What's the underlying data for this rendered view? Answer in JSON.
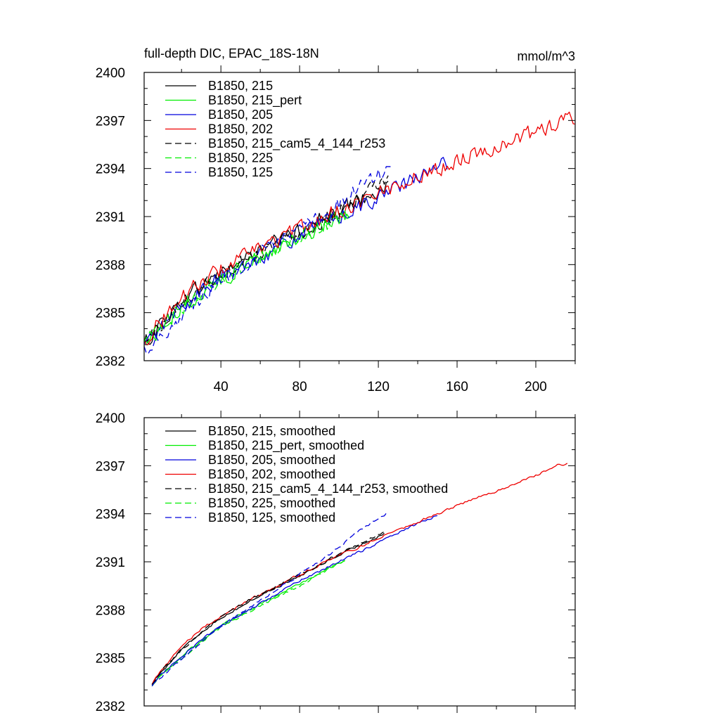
{
  "chart_data": [
    {
      "type": "line",
      "title": "full-depth DIC, EPAC_18S-18N",
      "units": "mmol/m^3",
      "xlabel": "",
      "ylabel": "",
      "xlim": [
        1,
        220
      ],
      "ylim": [
        2382,
        2400
      ],
      "xticks": [
        40,
        80,
        120,
        160,
        200
      ],
      "yticks": [
        2382,
        2385,
        2388,
        2391,
        2394,
        2397,
        2400
      ],
      "legend_position": "top-left",
      "grid": false,
      "series": [
        {
          "name": "B1850, 215",
          "color": "#000000",
          "dash": false,
          "noise": 0.45,
          "x": [
            1,
            10,
            20,
            30,
            40,
            50,
            60,
            70,
            80,
            90,
            100,
            110,
            120,
            125
          ],
          "y": [
            2383.0,
            2384.4,
            2385.7,
            2386.7,
            2387.5,
            2388.2,
            2388.9,
            2389.5,
            2390.1,
            2390.8,
            2391.4,
            2392.0,
            2392.7,
            2393.0
          ]
        },
        {
          "name": "B1850, 215_pert",
          "color": "#00ee00",
          "dash": false,
          "noise": 0.45,
          "x": [
            1,
            10,
            20,
            30,
            40,
            50,
            60,
            70,
            80,
            90,
            100,
            105
          ],
          "y": [
            2383.1,
            2384.0,
            2385.2,
            2386.3,
            2387.1,
            2387.8,
            2388.5,
            2389.1,
            2389.7,
            2390.3,
            2391.0,
            2391.3
          ]
        },
        {
          "name": "B1850, 205",
          "color": "#0000dd",
          "dash": false,
          "noise": 0.45,
          "x": [
            1,
            10,
            20,
            30,
            40,
            50,
            60,
            70,
            80,
            90,
            100,
            110,
            120,
            130,
            140,
            150,
            155
          ],
          "y": [
            2382.9,
            2384.1,
            2385.3,
            2386.3,
            2387.1,
            2387.8,
            2388.5,
            2389.1,
            2389.8,
            2390.4,
            2391.0,
            2391.6,
            2392.2,
            2392.8,
            2393.4,
            2394.0,
            2394.3
          ]
        },
        {
          "name": "B1850, 202",
          "color": "#ee0000",
          "dash": false,
          "noise": 0.45,
          "x": [
            1,
            10,
            20,
            30,
            40,
            50,
            60,
            70,
            80,
            90,
            100,
            110,
            120,
            130,
            140,
            150,
            160,
            170,
            180,
            190,
            200,
            210,
            220
          ],
          "y": [
            2383.2,
            2384.6,
            2385.9,
            2386.9,
            2387.7,
            2388.4,
            2389.0,
            2389.6,
            2390.2,
            2390.8,
            2391.4,
            2391.9,
            2392.5,
            2393.0,
            2393.5,
            2394.0,
            2394.5,
            2395.0,
            2395.4,
            2395.8,
            2396.3,
            2396.8,
            2397.2
          ]
        },
        {
          "name": "B1850, 215_cam5_4_144_r253",
          "color": "#000000",
          "dash": true,
          "noise": 0.45,
          "x": [
            1,
            10,
            20,
            30,
            40,
            50,
            60,
            70,
            80,
            90,
            100,
            110,
            120,
            125
          ],
          "y": [
            2383.1,
            2384.3,
            2385.6,
            2386.6,
            2387.4,
            2388.2,
            2388.9,
            2389.5,
            2390.1,
            2390.7,
            2391.4,
            2392.1,
            2392.8,
            2393.1
          ]
        },
        {
          "name": "B1850, 225",
          "color": "#00ee00",
          "dash": true,
          "noise": 0.45,
          "x": [
            1,
            10,
            20,
            30,
            40,
            50,
            60,
            70,
            80,
            90,
            100,
            105
          ],
          "y": [
            2383.0,
            2384.0,
            2385.3,
            2386.3,
            2387.2,
            2387.9,
            2388.5,
            2389.1,
            2389.7,
            2390.3,
            2390.9,
            2391.2
          ]
        },
        {
          "name": "B1850, 125",
          "color": "#0000dd",
          "dash": true,
          "noise": 0.45,
          "x": [
            1,
            10,
            20,
            30,
            40,
            50,
            60,
            70,
            80,
            90,
            100,
            110,
            120,
            127
          ],
          "y": [
            2382.7,
            2383.6,
            2384.9,
            2386.0,
            2387.0,
            2387.8,
            2388.6,
            2389.3,
            2390.1,
            2390.9,
            2391.8,
            2392.7,
            2393.6,
            2394.2
          ]
        }
      ]
    },
    {
      "type": "line",
      "title": "",
      "xlabel": "",
      "ylabel": "",
      "xlim": [
        1,
        220
      ],
      "ylim": [
        2382,
        2400
      ],
      "xticks": [
        40,
        80,
        120,
        160,
        200
      ],
      "yticks": [
        2382,
        2385,
        2388,
        2391,
        2394,
        2397,
        2400
      ],
      "legend_position": "top-left",
      "grid": false,
      "series": [
        {
          "name": "B1850, 215, smoothed",
          "color": "#000000",
          "dash": false,
          "noise": 0.07,
          "x": [
            5,
            10,
            20,
            30,
            40,
            50,
            60,
            70,
            80,
            90,
            100,
            110,
            120,
            123
          ],
          "y": [
            2383.4,
            2384.2,
            2385.5,
            2386.6,
            2387.5,
            2388.2,
            2388.9,
            2389.5,
            2390.1,
            2390.8,
            2391.4,
            2392.0,
            2392.6,
            2392.8
          ]
        },
        {
          "name": "B1850, 215_pert, smoothed",
          "color": "#00ee00",
          "dash": false,
          "noise": 0.07,
          "x": [
            5,
            10,
            20,
            30,
            40,
            50,
            60,
            70,
            80,
            90,
            100,
            103
          ],
          "y": [
            2383.4,
            2384.0,
            2385.1,
            2386.1,
            2387.0,
            2387.7,
            2388.4,
            2389.0,
            2389.6,
            2390.3,
            2390.9,
            2391.1
          ]
        },
        {
          "name": "B1850, 205, smoothed",
          "color": "#0000dd",
          "dash": false,
          "noise": 0.07,
          "x": [
            5,
            10,
            20,
            30,
            40,
            50,
            60,
            70,
            80,
            90,
            100,
            110,
            120,
            130,
            140,
            150
          ],
          "y": [
            2383.3,
            2384.0,
            2385.1,
            2386.1,
            2387.0,
            2387.7,
            2388.4,
            2389.1,
            2389.8,
            2390.4,
            2391.0,
            2391.6,
            2392.2,
            2392.8,
            2393.4,
            2393.9
          ]
        },
        {
          "name": "B1850, 202, smoothed",
          "color": "#ee0000",
          "dash": false,
          "noise": 0.07,
          "x": [
            5,
            10,
            20,
            30,
            40,
            50,
            60,
            70,
            80,
            90,
            100,
            110,
            120,
            130,
            140,
            150,
            160,
            170,
            180,
            190,
            200,
            210,
            213,
            216
          ],
          "y": [
            2383.4,
            2384.3,
            2385.7,
            2386.8,
            2387.6,
            2388.3,
            2389.0,
            2389.6,
            2390.2,
            2390.8,
            2391.4,
            2391.9,
            2392.5,
            2393.0,
            2393.5,
            2394.0,
            2394.5,
            2395.0,
            2395.4,
            2395.9,
            2396.4,
            2397.0,
            2397.1,
            2397.1
          ]
        },
        {
          "name": "B1850, 215_cam5_4_144_r253, smoothed",
          "color": "#000000",
          "dash": true,
          "noise": 0.07,
          "x": [
            5,
            10,
            20,
            30,
            40,
            50,
            60,
            70,
            80,
            90,
            100,
            110,
            120,
            123
          ],
          "y": [
            2383.4,
            2384.2,
            2385.5,
            2386.6,
            2387.5,
            2388.3,
            2389.0,
            2389.6,
            2390.2,
            2390.8,
            2391.5,
            2392.1,
            2392.7,
            2392.8
          ]
        },
        {
          "name": "B1850, 225, smoothed",
          "color": "#00ee00",
          "dash": true,
          "noise": 0.07,
          "x": [
            5,
            10,
            20,
            30,
            40,
            50,
            60,
            70,
            80,
            90,
            100,
            103
          ],
          "y": [
            2383.3,
            2383.9,
            2385.0,
            2386.0,
            2386.9,
            2387.6,
            2388.2,
            2388.9,
            2389.5,
            2390.2,
            2390.9,
            2391.1
          ]
        },
        {
          "name": "B1850, 125, smoothed",
          "color": "#0000dd",
          "dash": true,
          "noise": 0.07,
          "x": [
            5,
            10,
            20,
            30,
            40,
            50,
            60,
            70,
            80,
            90,
            100,
            110,
            120,
            124
          ],
          "y": [
            2383.3,
            2383.8,
            2384.9,
            2386.0,
            2387.0,
            2387.8,
            2388.6,
            2389.4,
            2390.2,
            2391.0,
            2391.9,
            2392.9,
            2393.7,
            2394.0
          ]
        }
      ]
    }
  ]
}
